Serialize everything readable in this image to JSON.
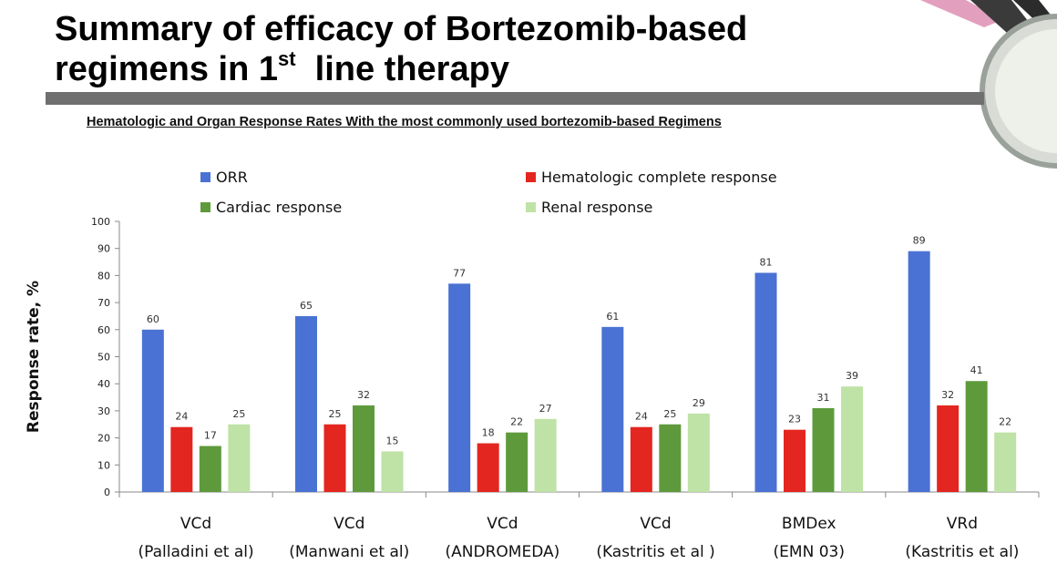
{
  "slide": {
    "title_line1": "Summary of efficacy of Bortezomib-based",
    "title_line2_pre": "regimens in 1",
    "title_sup": "st",
    "title_line2_post": "  line therapy"
  },
  "chart_data": {
    "type": "bar",
    "title": "Hematologic and Organ Response Rates With the most commonly used bortezomib-based Regimens",
    "ylabel": "Response rate, %",
    "xlabel": "",
    "ylim": [
      0,
      100
    ],
    "yticks": [
      0,
      10,
      20,
      30,
      40,
      50,
      60,
      70,
      80,
      90,
      100
    ],
    "grid": false,
    "legend_position": "top",
    "categories": [
      [
        "VCd",
        "(Palladini et al)"
      ],
      [
        "VCd",
        "(Manwani et al)"
      ],
      [
        "VCd",
        "(ANDROMEDA)"
      ],
      [
        "VCd",
        "(Kastritis et al )"
      ],
      [
        "BMDex",
        "(EMN 03)"
      ],
      [
        "VRd",
        "(Kastritis et al)"
      ]
    ],
    "series": [
      {
        "name": "ORR",
        "color": "#4a72d4",
        "values": [
          60,
          65,
          77,
          61,
          81,
          89
        ]
      },
      {
        "name": "Hematologic complete response",
        "color": "#e3261f",
        "values": [
          24,
          25,
          18,
          24,
          23,
          32
        ]
      },
      {
        "name": "Cardiac response",
        "color": "#5e9a3c",
        "values": [
          17,
          32,
          22,
          25,
          31,
          41
        ]
      },
      {
        "name": "Renal response",
        "color": "#bfe2a6",
        "values": [
          25,
          15,
          27,
          29,
          39,
          22
        ]
      }
    ]
  }
}
